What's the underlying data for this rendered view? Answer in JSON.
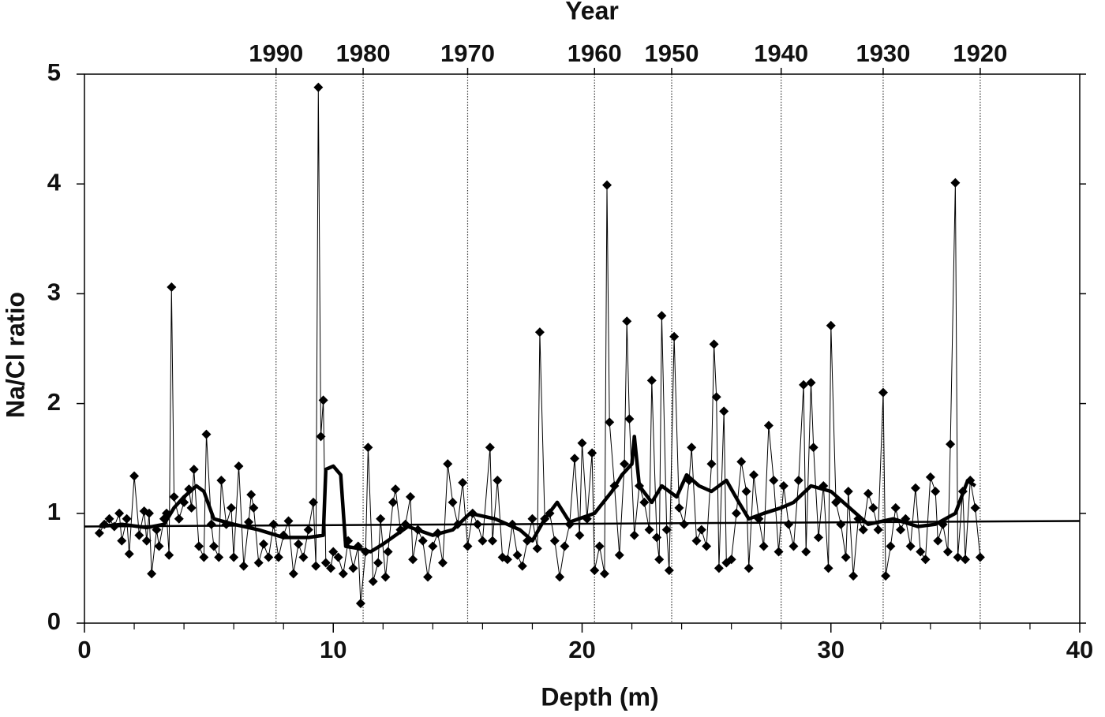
{
  "chart_data": {
    "type": "line",
    "xlabel": "Depth (m)",
    "ylabel": "Na/Cl ratio",
    "x2label": "Year",
    "xlim": [
      0,
      40
    ],
    "xticks": [
      0,
      10,
      20,
      30,
      40
    ],
    "xminorticks": [
      2,
      4,
      6,
      8,
      12,
      14,
      16,
      18,
      22,
      24,
      26,
      28,
      32,
      34,
      36,
      38
    ],
    "ylim": [
      0,
      5
    ],
    "yticks": [
      0,
      1,
      2,
      3,
      4,
      5
    ],
    "x2ticks": [
      {
        "value": 7.7,
        "label": "1990"
      },
      {
        "value": 11.2,
        "label": "1980"
      },
      {
        "value": 15.4,
        "label": "1970"
      },
      {
        "value": 20.5,
        "label": "1960"
      },
      {
        "value": 23.6,
        "label": "1950"
      },
      {
        "value": 28.0,
        "label": "1940"
      },
      {
        "value": 32.1,
        "label": "1930"
      },
      {
        "value": 36.0,
        "label": "1920"
      }
    ],
    "series": [
      {
        "color": "#000000",
        "marker": "diamond",
        "linewidth": 1,
        "x": [
          0.6,
          0.8,
          1.0,
          1.2,
          1.4,
          1.5,
          1.7,
          1.8,
          2.0,
          2.2,
          2.4,
          2.5,
          2.6,
          2.7,
          2.9,
          3.0,
          3.2,
          3.3,
          3.4,
          3.5,
          3.6,
          3.8,
          4.0,
          4.2,
          4.3,
          4.4,
          4.6,
          4.8,
          4.9,
          5.1,
          5.2,
          5.4,
          5.5,
          5.7,
          5.9,
          6.0,
          6.2,
          6.4,
          6.6,
          6.7,
          6.8,
          7.0,
          7.2,
          7.4,
          7.6,
          7.8,
          8.0,
          8.2,
          8.4,
          8.6,
          8.8,
          9.0,
          9.2,
          9.3,
          9.4,
          9.5,
          9.6,
          9.7,
          9.9,
          10.0,
          10.2,
          10.4,
          10.6,
          10.8,
          11.0,
          11.1,
          11.3,
          11.4,
          11.6,
          11.8,
          11.9,
          12.1,
          12.2,
          12.4,
          12.5,
          12.7,
          12.9,
          13.1,
          13.2,
          13.4,
          13.6,
          13.8,
          14.0,
          14.2,
          14.4,
          14.6,
          14.8,
          15.0,
          15.2,
          15.4,
          15.6,
          15.8,
          16.0,
          16.3,
          16.4,
          16.6,
          16.8,
          17.0,
          17.2,
          17.4,
          17.6,
          17.8,
          18.0,
          18.2,
          18.3,
          18.5,
          18.7,
          18.9,
          19.1,
          19.3,
          19.5,
          19.7,
          19.9,
          20.0,
          20.2,
          20.4,
          20.5,
          20.7,
          20.9,
          21.0,
          21.1,
          21.3,
          21.5,
          21.7,
          21.8,
          21.9,
          22.1,
          22.3,
          22.5,
          22.7,
          22.8,
          23.0,
          23.1,
          23.2,
          23.4,
          23.5,
          23.7,
          23.9,
          24.1,
          24.3,
          24.4,
          24.6,
          24.8,
          25.0,
          25.2,
          25.3,
          25.4,
          25.5,
          25.7,
          25.8,
          26.0,
          26.2,
          26.4,
          26.6,
          26.7,
          26.9,
          27.1,
          27.3,
          27.5,
          27.7,
          27.9,
          28.1,
          28.3,
          28.5,
          28.7,
          28.9,
          29.0,
          29.2,
          29.3,
          29.5,
          29.7,
          29.9,
          30.0,
          30.2,
          30.4,
          30.6,
          30.7,
          30.9,
          31.1,
          31.3,
          31.5,
          31.7,
          31.9,
          32.1,
          32.2,
          32.4,
          32.6,
          32.8,
          33.0,
          33.2,
          33.4,
          33.6,
          33.8,
          34.0,
          34.2,
          34.3,
          34.5,
          34.7,
          34.8,
          35.0,
          35.1,
          35.3,
          35.4,
          35.6,
          35.8,
          36.0
        ],
        "values": [
          0.82,
          0.9,
          0.95,
          0.88,
          1.0,
          0.75,
          0.95,
          0.63,
          1.34,
          0.8,
          1.02,
          0.75,
          1.0,
          0.45,
          0.85,
          0.7,
          0.95,
          1.0,
          0.62,
          3.06,
          1.15,
          0.95,
          1.1,
          1.22,
          1.05,
          1.4,
          0.7,
          0.6,
          1.72,
          0.9,
          0.7,
          0.6,
          1.3,
          0.9,
          1.05,
          0.6,
          1.43,
          0.52,
          0.92,
          1.17,
          1.05,
          0.55,
          0.72,
          0.6,
          0.9,
          0.6,
          0.8,
          0.93,
          0.45,
          0.72,
          0.6,
          0.85,
          1.1,
          0.52,
          4.88,
          1.7,
          2.03,
          0.55,
          0.5,
          0.65,
          0.6,
          0.45,
          0.75,
          0.5,
          0.7,
          0.18,
          0.65,
          1.6,
          0.38,
          0.55,
          0.95,
          0.42,
          0.65,
          1.1,
          1.22,
          0.85,
          0.9,
          1.15,
          0.58,
          0.85,
          0.75,
          0.42,
          0.7,
          0.82,
          0.55,
          1.45,
          1.1,
          0.9,
          1.28,
          0.7,
          1.0,
          0.9,
          0.75,
          1.6,
          0.75,
          1.3,
          0.6,
          0.58,
          0.9,
          0.62,
          0.52,
          0.75,
          0.95,
          0.68,
          2.65,
          0.95,
          1.0,
          0.75,
          0.42,
          0.7,
          0.9,
          1.5,
          0.8,
          1.64,
          0.95,
          1.55,
          0.48,
          0.7,
          0.45,
          3.99,
          1.83,
          1.25,
          0.62,
          1.45,
          2.75,
          1.86,
          0.8,
          1.25,
          1.1,
          0.85,
          2.21,
          0.78,
          0.58,
          2.8,
          0.85,
          0.48,
          2.61,
          1.05,
          0.9,
          1.3,
          1.6,
          0.75,
          0.85,
          0.7,
          1.45,
          2.54,
          2.06,
          0.5,
          1.93,
          0.55,
          0.58,
          1.0,
          1.47,
          1.2,
          0.5,
          1.35,
          0.95,
          0.7,
          1.8,
          1.3,
          0.65,
          1.25,
          0.9,
          0.7,
          1.3,
          2.17,
          0.65,
          2.19,
          1.6,
          0.78,
          1.25,
          0.5,
          2.71,
          1.1,
          0.9,
          0.6,
          1.2,
          0.43,
          0.95,
          0.85,
          1.18,
          1.05,
          0.85,
          2.1,
          0.43,
          0.7,
          1.05,
          0.85,
          0.95,
          0.7,
          1.23,
          0.65,
          0.58,
          1.33,
          1.2,
          0.75,
          0.9,
          0.65,
          1.63,
          4.01,
          0.6,
          1.2,
          0.58,
          1.3,
          1.05,
          0.6
        ]
      },
      {
        "color": "#000000",
        "linewidth": 4.5,
        "x": [
          0.6,
          1.5,
          2.5,
          3.2,
          3.6,
          4.0,
          4.5,
          4.8,
          5.2,
          6.0,
          7.0,
          8.0,
          9.0,
          9.6,
          9.7,
          10.0,
          10.3,
          10.5,
          11.0,
          11.5,
          12.0,
          13.0,
          14.0,
          14.8,
          15.5,
          16.5,
          17.5,
          18.0,
          18.5,
          19.0,
          19.5,
          20.5,
          21.2,
          21.6,
          22.0,
          22.1,
          22.3,
          22.8,
          23.2,
          23.8,
          24.2,
          24.7,
          25.2,
          25.8,
          26.3,
          26.7,
          27.3,
          28.0,
          28.5,
          29.2,
          30.0,
          31.0,
          31.5,
          32.5,
          33.5,
          34.2,
          35.0,
          35.5,
          35.8
        ],
        "values": [
          0.88,
          0.9,
          0.87,
          0.9,
          1.05,
          1.15,
          1.25,
          1.2,
          0.95,
          0.9,
          0.85,
          0.78,
          0.78,
          0.8,
          1.4,
          1.43,
          1.35,
          0.7,
          0.68,
          0.65,
          0.72,
          0.88,
          0.8,
          0.85,
          1.0,
          0.95,
          0.85,
          0.75,
          0.95,
          1.1,
          0.92,
          1.0,
          1.2,
          1.35,
          1.45,
          1.7,
          1.25,
          1.1,
          1.25,
          1.15,
          1.35,
          1.25,
          1.2,
          1.3,
          1.1,
          0.95,
          1.0,
          1.05,
          1.1,
          1.25,
          1.2,
          1.0,
          0.9,
          0.95,
          0.88,
          0.9,
          1.0,
          1.3,
          1.25
        ]
      },
      {
        "color": "#000000",
        "linewidth": 2.5,
        "x": [
          0,
          40
        ],
        "values": [
          0.88,
          0.93
        ]
      }
    ]
  }
}
